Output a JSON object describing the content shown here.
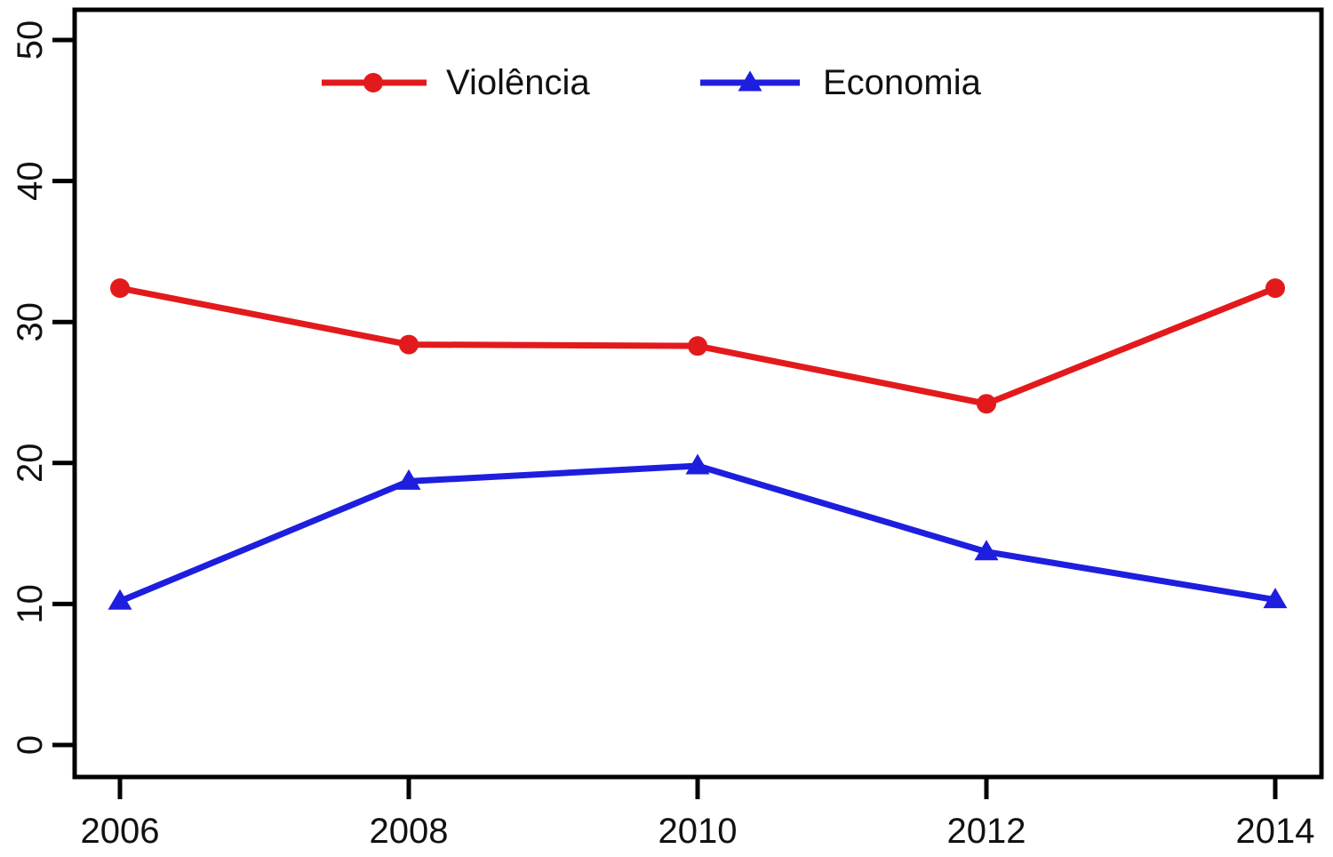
{
  "chart_data": {
    "type": "line",
    "title": "",
    "xlabel": "",
    "ylabel": "",
    "x": [
      2006,
      2008,
      2010,
      2012,
      2014
    ],
    "xtick_labels": [
      "2006",
      "2008",
      "2010",
      "2012",
      "2014"
    ],
    "ytick_values": [
      0,
      10,
      20,
      30,
      40,
      50
    ],
    "ytick_labels": [
      "0",
      "10",
      "20",
      "30",
      "40",
      "50"
    ],
    "ylim": [
      0,
      50
    ],
    "xlim": [
      2006,
      2014
    ],
    "grid": false,
    "legend_position": "top-inside",
    "background_color": "#ffffff",
    "axis_color": "#000000",
    "series": [
      {
        "name": "Violência",
        "color": "#e31a1c",
        "marker": "circle",
        "values": [
          32.4,
          28.4,
          28.3,
          24.2,
          32.4
        ]
      },
      {
        "name": "Economia",
        "color": "#1e1ede",
        "marker": "triangle",
        "values": [
          10.2,
          18.7,
          19.8,
          13.7,
          10.3
        ]
      }
    ]
  }
}
